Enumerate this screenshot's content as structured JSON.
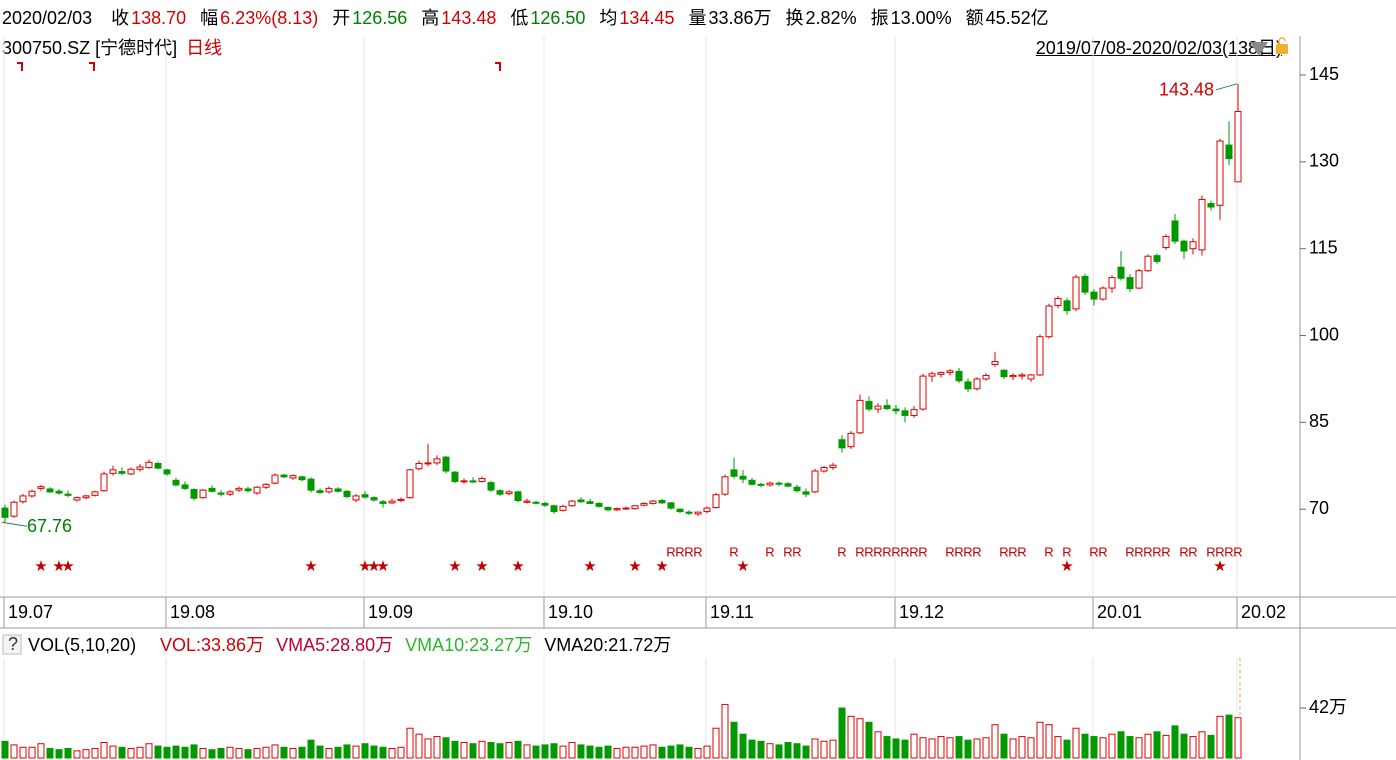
{
  "header": {
    "date": "2020/02/03",
    "fields": [
      {
        "label": "收",
        "value": "138.70",
        "color": "#d00000"
      },
      {
        "label": "幅",
        "value": "6.23%(8.13)",
        "color": "#d00000"
      },
      {
        "label": "开",
        "value": "126.56",
        "color": "#008000"
      },
      {
        "label": "高",
        "value": "143.48",
        "color": "#d00000"
      },
      {
        "label": "低",
        "value": "126.50",
        "color": "#008000"
      },
      {
        "label": "均",
        "value": "134.45",
        "color": "#d00000"
      },
      {
        "label": "量",
        "value": "33.86万",
        "color": "#000000"
      },
      {
        "label": "换",
        "value": "2.82%",
        "color": "#000000"
      },
      {
        "label": "振",
        "value": "13.00%",
        "color": "#000000"
      },
      {
        "label": "额",
        "value": "45.52亿",
        "color": "#000000"
      }
    ]
  },
  "chart_data": {
    "type": "candlestick",
    "title": "300750.SZ [宁德时代]",
    "period": "日线",
    "range_label": "2019/07/08-2020/02/03(138日)",
    "up_color": "#e00000",
    "down_color": "#009a00",
    "ylim": [
      54.84,
      151.74
    ],
    "yticks": [
      70,
      85,
      100,
      115,
      130,
      145
    ],
    "xticks": [
      {
        "value": 0,
        "label": "19.07"
      },
      {
        "value": 18,
        "label": "19.08"
      },
      {
        "value": 40,
        "label": "19.09"
      },
      {
        "value": 60,
        "label": "19.10"
      },
      {
        "value": 78,
        "label": "19.11"
      },
      {
        "value": 99,
        "label": "19.12"
      },
      {
        "value": 121,
        "label": "20.01"
      },
      {
        "value": 137,
        "label": "20.02"
      }
    ],
    "candles": [
      [
        70.2,
        70.8,
        67.76,
        68.6
      ],
      [
        68.8,
        71.5,
        68.5,
        71.2
      ],
      [
        71.3,
        72.6,
        71,
        72.3
      ],
      [
        72.3,
        73.4,
        72,
        73.1
      ],
      [
        73.6,
        74.2,
        73.2,
        73.9
      ],
      [
        73.5,
        73.8,
        72.8,
        73.0
      ],
      [
        73.1,
        73.5,
        72.5,
        72.8
      ],
      [
        72.6,
        73.2,
        72.1,
        72.4
      ],
      [
        71.6,
        72.2,
        71.3,
        72.0
      ],
      [
        72.0,
        72.5,
        71.7,
        72.3
      ],
      [
        72.4,
        73.2,
        72.2,
        73.0
      ],
      [
        73.2,
        76.5,
        73.0,
        76.1
      ],
      [
        76.2,
        77.5,
        75.8,
        76.8
      ],
      [
        76.5,
        77.2,
        75.9,
        76.2
      ],
      [
        76.1,
        77.2,
        75.9,
        76.9
      ],
      [
        76.9,
        77.8,
        76.5,
        77.3
      ],
      [
        77.2,
        78.6,
        77.0,
        78.1
      ],
      [
        77.9,
        78.2,
        76.9,
        77.1
      ],
      [
        76.8,
        77.0,
        75.8,
        76.1
      ],
      [
        75.0,
        75.4,
        73.9,
        74.2
      ],
      [
        74.2,
        74.8,
        73.3,
        73.6
      ],
      [
        73.4,
        73.6,
        71.5,
        71.9
      ],
      [
        72.0,
        73.5,
        71.8,
        73.3
      ],
      [
        73.6,
        74.1,
        72.9,
        73.1
      ],
      [
        72.8,
        73.3,
        72.2,
        72.6
      ],
      [
        72.6,
        73.3,
        72.3,
        73.0
      ],
      [
        73.3,
        73.9,
        73.0,
        73.6
      ],
      [
        73.5,
        73.9,
        72.9,
        73.2
      ],
      [
        72.8,
        74.0,
        72.5,
        73.8
      ],
      [
        73.8,
        74.5,
        73.5,
        74.3
      ],
      [
        74.5,
        76.2,
        74.3,
        75.9
      ],
      [
        75.9,
        76.1,
        75.4,
        75.6
      ],
      [
        75.4,
        76.0,
        75.1,
        75.8
      ],
      [
        75.6,
        75.8,
        74.8,
        75.1
      ],
      [
        75.2,
        75.5,
        72.9,
        73.3
      ],
      [
        73.2,
        73.6,
        72.6,
        72.9
      ],
      [
        73.0,
        73.9,
        72.7,
        73.6
      ],
      [
        73.5,
        73.8,
        72.9,
        73.1
      ],
      [
        73.1,
        73.3,
        71.9,
        72.2
      ],
      [
        71.6,
        72.6,
        71.2,
        72.3
      ],
      [
        72.5,
        73.1,
        71.8,
        72.1
      ],
      [
        72.0,
        72.2,
        71.3,
        71.6
      ],
      [
        71.3,
        71.6,
        70.3,
        71.0
      ],
      [
        71.1,
        71.8,
        70.9,
        71.4
      ],
      [
        71.5,
        72.0,
        71.2,
        71.7
      ],
      [
        72.0,
        77.0,
        71.8,
        76.8
      ],
      [
        77.0,
        78.4,
        76.7,
        77.9
      ],
      [
        77.9,
        81.3,
        77.4,
        78.0
      ],
      [
        78.0,
        79.3,
        77.6,
        78.7
      ],
      [
        79.0,
        79.2,
        76.2,
        76.6
      ],
      [
        76.4,
        76.6,
        74.5,
        74.8
      ],
      [
        74.8,
        75.3,
        74.4,
        74.9
      ],
      [
        74.9,
        75.5,
        74.5,
        74.7
      ],
      [
        74.8,
        75.6,
        74.6,
        75.3
      ],
      [
        74.6,
        74.9,
        73.0,
        73.3
      ],
      [
        73.2,
        73.5,
        72.3,
        72.6
      ],
      [
        72.7,
        73.3,
        72.4,
        73.0
      ],
      [
        73.0,
        73.2,
        71.2,
        71.5
      ],
      [
        71.2,
        71.8,
        71.0,
        71.4
      ],
      [
        71.2,
        71.5,
        70.8,
        71.1
      ],
      [
        71.0,
        71.3,
        70.4,
        70.7
      ],
      [
        70.6,
        70.8,
        69.2,
        69.6
      ],
      [
        69.8,
        70.8,
        69.6,
        70.5
      ],
      [
        70.6,
        71.6,
        70.4,
        71.4
      ],
      [
        71.6,
        72.1,
        71.1,
        71.3
      ],
      [
        71.3,
        71.8,
        70.9,
        71.0
      ],
      [
        71.0,
        71.2,
        70.3,
        70.5
      ],
      [
        70.3,
        70.5,
        69.6,
        69.9
      ],
      [
        69.9,
        70.3,
        69.7,
        70.1
      ],
      [
        70.1,
        70.5,
        69.9,
        70.2
      ],
      [
        70.1,
        70.7,
        69.9,
        70.6
      ],
      [
        70.7,
        71.2,
        70.5,
        71.0
      ],
      [
        71.0,
        71.6,
        70.8,
        71.4
      ],
      [
        71.5,
        71.8,
        70.9,
        71.1
      ],
      [
        71.1,
        71.3,
        69.9,
        70.2
      ],
      [
        70.0,
        70.2,
        69.3,
        69.6
      ],
      [
        69.5,
        69.8,
        69.0,
        69.3
      ],
      [
        69.2,
        69.6,
        68.8,
        69.5
      ],
      [
        69.6,
        70.5,
        69.3,
        70.2
      ],
      [
        70.3,
        72.8,
        70.1,
        72.5
      ],
      [
        72.6,
        76.0,
        72.3,
        75.6
      ],
      [
        76.8,
        78.9,
        75.3,
        75.7
      ],
      [
        75.7,
        76.8,
        74.5,
        75.2
      ],
      [
        75.0,
        75.4,
        74.1,
        74.3
      ],
      [
        74.3,
        74.6,
        73.8,
        74.2
      ],
      [
        74.2,
        74.8,
        73.9,
        74.5
      ],
      [
        74.5,
        74.8,
        74.0,
        74.4
      ],
      [
        74.4,
        74.7,
        73.8,
        74.0
      ],
      [
        73.8,
        74.2,
        72.9,
        73.2
      ],
      [
        73.0,
        73.6,
        72.1,
        72.6
      ],
      [
        73.0,
        77.0,
        72.8,
        76.6
      ],
      [
        76.6,
        77.5,
        76.3,
        77.2
      ],
      [
        77.2,
        78.0,
        76.8,
        77.6
      ],
      [
        82.0,
        82.8,
        79.8,
        80.6
      ],
      [
        80.8,
        83.5,
        80.4,
        83.1
      ],
      [
        83.2,
        89.8,
        83.0,
        88.8
      ],
      [
        88.6,
        89.5,
        86.9,
        87.3
      ],
      [
        87.3,
        88.3,
        86.6,
        87.8
      ],
      [
        87.9,
        89.0,
        87.1,
        87.4
      ],
      [
        87.3,
        88.0,
        86.4,
        87.0
      ],
      [
        87.0,
        87.6,
        85.0,
        86.2
      ],
      [
        86.2,
        87.8,
        85.8,
        87.2
      ],
      [
        87.3,
        93.4,
        87.0,
        93.0
      ],
      [
        93.0,
        93.8,
        92.0,
        93.4
      ],
      [
        93.3,
        93.8,
        92.8,
        93.6
      ],
      [
        93.6,
        94.2,
        93.1,
        93.9
      ],
      [
        93.8,
        94.4,
        91.8,
        92.2
      ],
      [
        92.0,
        92.6,
        90.2,
        90.8
      ],
      [
        90.8,
        92.8,
        90.5,
        92.5
      ],
      [
        92.5,
        93.5,
        92.2,
        93.1
      ],
      [
        95.0,
        97.2,
        94.6,
        95.5
      ],
      [
        94.0,
        94.2,
        92.5,
        92.9
      ],
      [
        92.9,
        93.5,
        92.3,
        93.1
      ],
      [
        93.0,
        93.6,
        92.4,
        93.2
      ],
      [
        92.5,
        93.4,
        92.0,
        93.2
      ],
      [
        93.2,
        100.2,
        93.0,
        99.8
      ],
      [
        99.8,
        105.5,
        99.5,
        105.1
      ],
      [
        105.2,
        106.8,
        104.7,
        106.4
      ],
      [
        106.0,
        106.5,
        103.6,
        104.3
      ],
      [
        104.6,
        110.5,
        104.2,
        110.1
      ],
      [
        110.2,
        110.7,
        107.0,
        107.5
      ],
      [
        107.5,
        108.0,
        105.2,
        106.3
      ],
      [
        106.3,
        108.5,
        106.0,
        108.2
      ],
      [
        108.2,
        110.4,
        107.4,
        110.0
      ],
      [
        111.8,
        114.6,
        109.5,
        109.9
      ],
      [
        110.0,
        110.6,
        107.5,
        108.1
      ],
      [
        108.2,
        111.5,
        108.0,
        111.2
      ],
      [
        111.2,
        114.0,
        111.0,
        113.7
      ],
      [
        113.8,
        114.2,
        112.4,
        112.8
      ],
      [
        115.2,
        117.5,
        114.8,
        117.1
      ],
      [
        119.8,
        121.0,
        115.8,
        116.3
      ],
      [
        116.3,
        116.6,
        113.2,
        114.6
      ],
      [
        115.0,
        116.8,
        114.0,
        116.2
      ],
      [
        114.8,
        124.2,
        113.8,
        123.5
      ],
      [
        122.8,
        123.3,
        121.6,
        122.2
      ],
      [
        122.5,
        134.0,
        120.0,
        133.6
      ],
      [
        132.9,
        137.0,
        129.4,
        130.57
      ],
      [
        126.56,
        143.48,
        126.5,
        138.7
      ]
    ],
    "r_signal": {
      "label": "R",
      "indices": [
        74,
        75,
        76,
        77,
        81,
        85,
        87,
        88,
        93,
        95,
        96,
        97,
        98,
        99,
        100,
        101,
        102,
        105,
        106,
        107,
        108,
        111,
        112,
        113,
        116,
        118,
        121,
        122,
        125,
        126,
        127,
        128,
        129,
        131,
        132,
        134,
        135,
        136,
        137
      ]
    },
    "star_signal": {
      "label": "★",
      "indices": [
        4,
        6,
        7,
        34,
        40,
        41,
        42,
        50,
        53,
        57,
        65,
        70,
        73,
        82,
        118,
        135
      ]
    },
    "volume": {
      "title": "VOL(5,10,20)",
      "legend": [
        {
          "text": "VOL:33.86万",
          "color": "#d00000"
        },
        {
          "text": "VMA5:28.80万",
          "color": "#c00030"
        },
        {
          "text": "VMA10:23.27万",
          "color": "#2db52d"
        },
        {
          "text": "VMA20:21.72万",
          "color": "#000000"
        }
      ],
      "ylim": [
        0,
        84
      ],
      "yticks": [
        {
          "value": 42,
          "label": "42万"
        }
      ],
      "values": [
        14,
        11,
        9,
        9,
        12,
        8,
        7,
        8,
        6,
        7,
        8,
        13,
        10,
        9,
        8,
        9,
        12,
        10,
        9,
        10,
        9,
        11,
        8,
        7,
        8,
        9,
        8,
        7,
        8,
        9,
        11,
        9,
        8,
        9,
        15,
        10,
        8,
        9,
        11,
        10,
        12,
        10,
        9,
        8,
        9,
        25,
        20,
        16,
        18,
        17,
        14,
        13,
        12,
        14,
        13,
        12,
        13,
        14,
        11,
        10,
        11,
        12,
        10,
        13,
        11,
        10,
        9,
        10,
        8,
        9,
        9,
        10,
        11,
        9,
        10,
        11,
        9,
        8,
        10,
        25,
        45,
        30,
        20,
        15,
        14,
        12,
        11,
        13,
        12,
        10,
        16,
        14,
        15,
        42,
        35,
        33,
        30,
        22,
        18,
        16,
        15,
        20,
        17,
        16,
        18,
        17,
        18,
        15,
        16,
        17,
        28,
        20,
        16,
        18,
        17,
        30,
        28,
        18,
        15,
        25,
        20,
        18,
        17,
        20,
        22,
        18,
        17,
        20,
        22,
        19,
        27,
        20,
        18,
        22,
        19,
        35,
        36,
        33.86
      ]
    }
  }
}
